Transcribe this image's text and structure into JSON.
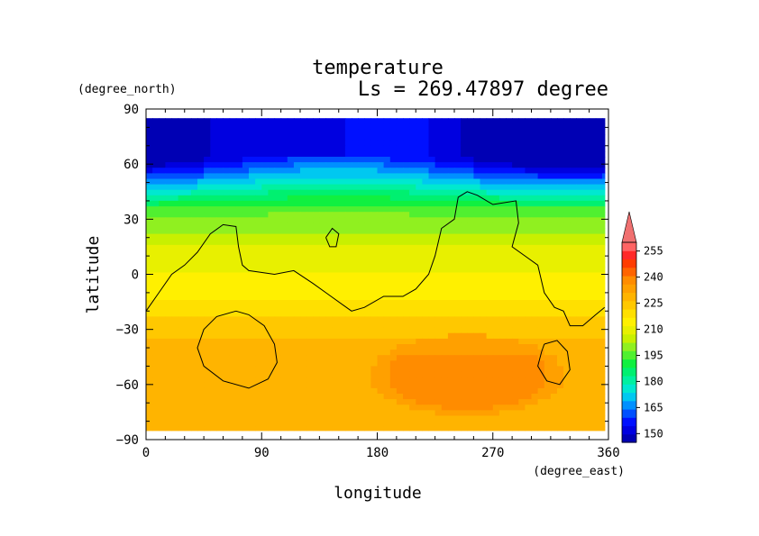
{
  "chart_data": {
    "type": "heatmap",
    "title": "temperature",
    "subtitle": "Ls = 269.47897 degree",
    "xlabel": "longitude",
    "ylabel": "latitude",
    "x_unit": "(degree_east)",
    "y_unit": "(degree_north)",
    "xlim": [
      0,
      360
    ],
    "ylim": [
      -90,
      90
    ],
    "x_ticks": [
      "0",
      "90",
      "180",
      "270",
      "360"
    ],
    "y_ticks": [
      "90",
      "60",
      "30",
      "0",
      "−30",
      "−60",
      "−90"
    ],
    "x_tick_values": [
      0,
      90,
      180,
      270,
      360
    ],
    "y_tick_values": [
      90,
      60,
      30,
      0,
      -30,
      -60,
      -90
    ],
    "colorbar": {
      "levels": [
        145,
        150,
        155,
        160,
        165,
        170,
        175,
        180,
        185,
        190,
        195,
        200,
        205,
        210,
        215,
        220,
        225,
        230,
        235,
        240,
        245,
        250,
        255,
        260
      ],
      "labels": [
        "150",
        "165",
        "180",
        "195",
        "210",
        "225",
        "240",
        "255"
      ],
      "label_values": [
        150,
        165,
        180,
        195,
        210,
        225,
        240,
        255
      ],
      "colors": [
        "#0000b4",
        "#0000e0",
        "#0010ff",
        "#0050ff",
        "#0090ff",
        "#00c8f0",
        "#00e8d0",
        "#00f0a0",
        "#00f070",
        "#10f040",
        "#50f030",
        "#90f020",
        "#c8f000",
        "#e8f000",
        "#fff000",
        "#ffe000",
        "#ffc800",
        "#ffb400",
        "#ffa000",
        "#ff8c00",
        "#ff6400",
        "#ff3c00",
        "#ff2828",
        "#ff6464"
      ],
      "over_color": "#f07070"
    }
  }
}
